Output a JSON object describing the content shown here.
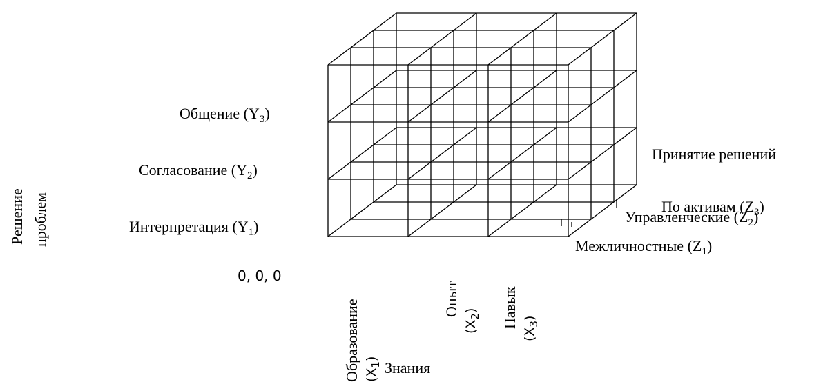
{
  "axes": {
    "origin": "0, 0, 0",
    "y_title": [
      "Решение",
      "проблем"
    ],
    "y_items": [
      {
        "text": "Общение (Y",
        "sub": "3",
        "close": ")"
      },
      {
        "text": "Согласование (Y",
        "sub": "2",
        "close": ")"
      },
      {
        "text": "Интерпретация (Y",
        "sub": "1",
        "close": ")"
      }
    ],
    "z_title": "Принятие решений",
    "z_items": [
      {
        "text": "По активам (Z",
        "sub": "3",
        "close": ")"
      },
      {
        "text": "Управленческие (Z",
        "sub": "2",
        "close": ")"
      },
      {
        "text": "Межличностные (Z",
        "sub": "1",
        "close": ")"
      }
    ],
    "x_title": "Знания",
    "x_items": [
      {
        "name": "Образование",
        "code": "(X",
        "sub": "1",
        "close": ")"
      },
      {
        "name": "Опыт",
        "code": "(X",
        "sub": "2",
        "close": ")"
      },
      {
        "name": "Навык",
        "code": "(X",
        "sub": "3",
        "close": ")"
      }
    ]
  },
  "style": {
    "line_color": "#000000",
    "background": "#ffffff"
  }
}
